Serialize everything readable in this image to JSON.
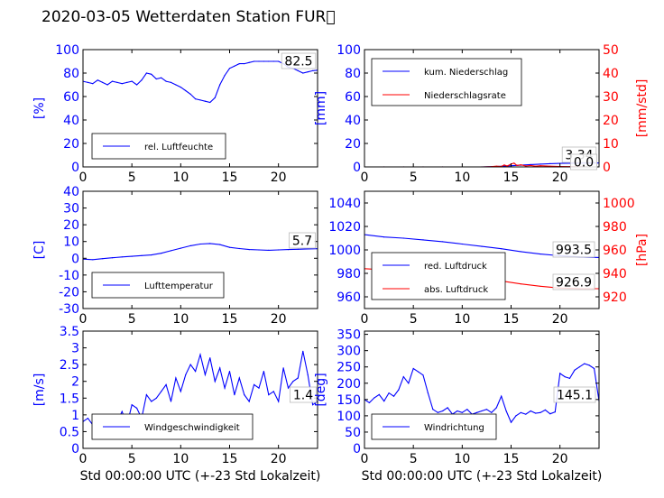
{
  "figure": {
    "title": "2020-03-05 Wetterdaten Station FUR\u0000"
  },
  "chart_data": [
    {
      "type": "line",
      "id": "humidity",
      "ylabel": "[%]",
      "xlabel": "",
      "xlim": [
        0,
        24
      ],
      "ylim": [
        0,
        100
      ],
      "xticks": [
        0,
        5,
        10,
        15,
        20
      ],
      "yticks": [
        0,
        20,
        40,
        60,
        80,
        100
      ],
      "grid": false,
      "legend": "bottom-left",
      "last_value_label": "82.5",
      "series": [
        {
          "name": "rel. Luftfeuchte",
          "color": "#0000ff",
          "axis": "left",
          "x": [
            0,
            0.5,
            1,
            1.5,
            2,
            2.5,
            3,
            3.5,
            4,
            4.5,
            5,
            5.5,
            6,
            6.5,
            7,
            7.5,
            8,
            8.5,
            9,
            9.5,
            10,
            10.5,
            11,
            11.5,
            12,
            12.5,
            13,
            13.5,
            14,
            14.5,
            15,
            15.5,
            16,
            16.5,
            17,
            17.5,
            18,
            18.5,
            19,
            19.5,
            20,
            20.5,
            21,
            21.5,
            22,
            22.5,
            23,
            23.5,
            24
          ],
          "y": [
            73,
            72,
            71,
            74,
            72,
            70,
            73,
            72,
            71,
            72,
            73,
            70,
            74,
            80,
            79,
            75,
            76,
            73,
            72,
            70,
            68,
            65,
            62,
            58,
            57,
            56,
            55,
            59,
            70,
            78,
            84,
            86,
            88,
            88,
            89,
            90,
            90,
            90,
            90,
            90,
            90,
            88,
            85,
            84,
            82,
            80,
            81,
            82,
            82.5
          ]
        }
      ]
    },
    {
      "type": "line",
      "id": "precipitation",
      "ylabel": "[mm]",
      "ylabel_right": "[mm/std]",
      "xlabel": "",
      "xlim": [
        0,
        24
      ],
      "ylim": [
        0,
        100
      ],
      "ylim_right": [
        0,
        50
      ],
      "xticks": [
        0,
        5,
        10,
        15,
        20
      ],
      "yticks": [
        0,
        20,
        40,
        60,
        80,
        100
      ],
      "yticks_right": [
        0,
        10,
        20,
        30,
        40,
        50
      ],
      "grid": false,
      "legend": "top-left",
      "last_value_labels": [
        "3.34",
        "0.0"
      ],
      "series": [
        {
          "name": "kum. Niederschlag",
          "color": "#0000ff",
          "axis": "left",
          "x": [
            0,
            2,
            4,
            6,
            8,
            10,
            12,
            13,
            14,
            15,
            16,
            17,
            18,
            19,
            20,
            21,
            22,
            23,
            24
          ],
          "y": [
            0,
            0,
            0,
            0,
            0,
            0,
            0,
            0.2,
            0.5,
            1.0,
            1.5,
            2.0,
            2.4,
            2.8,
            3.0,
            3.1,
            3.2,
            3.3,
            3.34
          ]
        },
        {
          "name": "Niederschlagsrate",
          "color": "#ff0000",
          "axis": "right",
          "x": [
            0,
            2,
            4,
            6,
            8,
            10,
            12,
            13,
            13.5,
            14,
            14.3,
            14.6,
            15,
            15.3,
            15.6,
            16,
            16.5,
            17,
            17.5,
            18,
            19,
            20,
            21,
            22,
            23,
            24
          ],
          "y": [
            0,
            0,
            0,
            0,
            0,
            0,
            0,
            0.1,
            0.3,
            0.2,
            0.8,
            0.4,
            1.2,
            1.6,
            0.6,
            0.9,
            0.4,
            0.6,
            0.3,
            0.5,
            0.3,
            0.2,
            0.1,
            0.1,
            0,
            0
          ]
        }
      ]
    },
    {
      "type": "line",
      "id": "temperature",
      "ylabel": "[C]",
      "xlabel": "",
      "xlim": [
        0,
        24
      ],
      "ylim": [
        -30,
        40
      ],
      "xticks": [
        0,
        5,
        10,
        15,
        20
      ],
      "yticks": [
        -30,
        -20,
        -10,
        0,
        10,
        20,
        30,
        40
      ],
      "grid": false,
      "legend": "bottom-left",
      "last_value_label": "5.7",
      "series": [
        {
          "name": "Lufttemperatur",
          "color": "#0000ff",
          "axis": "left",
          "x": [
            0,
            1,
            2,
            3,
            4,
            5,
            6,
            7,
            8,
            9,
            10,
            11,
            12,
            13,
            14,
            15,
            16,
            17,
            18,
            19,
            20,
            21,
            22,
            23,
            24
          ],
          "y": [
            -0.5,
            -0.8,
            -0.2,
            0.3,
            0.8,
            1.2,
            1.6,
            2.0,
            3.0,
            4.5,
            6.0,
            7.5,
            8.5,
            8.8,
            8.2,
            6.5,
            5.8,
            5.2,
            5.0,
            4.8,
            5.0,
            5.2,
            5.4,
            5.6,
            5.7
          ]
        }
      ]
    },
    {
      "type": "line",
      "id": "pressure",
      "ylabel": "",
      "ylabel_right": "[hPa]",
      "xlabel": "",
      "xlim": [
        0,
        24
      ],
      "ylim": [
        950,
        1050
      ],
      "ylim_right": [
        910,
        1010
      ],
      "xticks": [
        0,
        5,
        10,
        15,
        20
      ],
      "yticks": [
        960,
        980,
        1000,
        1020,
        1040
      ],
      "yticks_right": [
        920,
        940,
        960,
        980,
        1000
      ],
      "grid": false,
      "legend": "bottom-left",
      "last_value_labels": [
        "993.5",
        "926.9"
      ],
      "series": [
        {
          "name": "red. Luftdruck",
          "color": "#0000ff",
          "axis": "left",
          "x": [
            0,
            2,
            4,
            6,
            8,
            10,
            12,
            14,
            16,
            18,
            20,
            22,
            24
          ],
          "y": [
            1013,
            1011,
            1010,
            1008.5,
            1007,
            1005,
            1003,
            1001,
            998.5,
            996.5,
            995,
            994,
            993.5
          ]
        },
        {
          "name": "abs. Luftdruck",
          "color": "#ff0000",
          "axis": "right",
          "x": [
            0,
            2,
            4,
            6,
            8,
            10,
            12,
            14,
            16,
            18,
            20,
            22,
            24
          ],
          "y": [
            944,
            943,
            941.5,
            940.5,
            939,
            937.5,
            936,
            933.5,
            931,
            929,
            927.5,
            927,
            926.9
          ]
        }
      ]
    },
    {
      "type": "line",
      "id": "wind-speed",
      "ylabel": "[m/s]",
      "xlabel": "Std 00:00:00 UTC (+-23 Std Lokalzeit)",
      "xlim": [
        0,
        24
      ],
      "ylim": [
        0,
        3.5
      ],
      "xticks": [
        0,
        5,
        10,
        15,
        20
      ],
      "yticks": [
        0,
        0.5,
        1.0,
        1.5,
        2.0,
        2.5,
        3.0,
        3.5
      ],
      "grid": false,
      "legend": "bottom-left",
      "last_value_label": "1.4",
      "series": [
        {
          "name": "Windgeschwindigkeit",
          "color": "#0000ff",
          "axis": "left",
          "x": [
            0,
            0.5,
            1,
            1.5,
            2,
            2.5,
            3,
            3.5,
            4,
            4.5,
            5,
            5.5,
            6,
            6.5,
            7,
            7.5,
            8,
            8.5,
            9,
            9.5,
            10,
            10.5,
            11,
            11.5,
            12,
            12.5,
            13,
            13.5,
            14,
            14.5,
            15,
            15.5,
            16,
            16.5,
            17,
            17.5,
            18,
            18.5,
            19,
            19.5,
            20,
            20.5,
            21,
            21.5,
            22,
            22.5,
            23,
            23.5,
            24
          ],
          "y": [
            0.8,
            0.9,
            0.7,
            1.0,
            0.8,
            0.9,
            0.6,
            0.8,
            1.1,
            0.7,
            1.3,
            1.2,
            0.9,
            1.6,
            1.4,
            1.5,
            1.7,
            1.9,
            1.4,
            2.1,
            1.7,
            2.2,
            2.5,
            2.3,
            2.8,
            2.2,
            2.7,
            2.0,
            2.4,
            1.8,
            2.3,
            1.6,
            2.1,
            1.6,
            1.4,
            1.9,
            1.8,
            2.3,
            1.6,
            1.7,
            1.4,
            2.4,
            1.8,
            2.0,
            2.1,
            2.9,
            2.2,
            1.3,
            1.4
          ]
        }
      ]
    },
    {
      "type": "line",
      "id": "wind-direction",
      "ylabel": "[deg]",
      "xlabel": "Std 00:00:00 UTC (+-23 Std Lokalzeit)",
      "xlim": [
        0,
        24
      ],
      "ylim": [
        0,
        360
      ],
      "xticks": [
        0,
        5,
        10,
        15,
        20
      ],
      "yticks": [
        0,
        50,
        100,
        150,
        200,
        250,
        300,
        350
      ],
      "grid": false,
      "legend": "bottom-left",
      "last_value_label": "145.1",
      "series": [
        {
          "name": "Windrichtung",
          "color": "#0000ff",
          "axis": "left",
          "x": [
            0,
            0.5,
            1,
            1.5,
            2,
            2.5,
            3,
            3.5,
            4,
            4.5,
            5,
            5.5,
            6,
            6.5,
            7,
            7.5,
            8,
            8.5,
            9,
            9.5,
            10,
            10.5,
            11,
            11.5,
            12,
            12.5,
            13,
            13.5,
            14,
            14.5,
            15,
            15.5,
            16,
            16.5,
            17,
            17.5,
            18,
            18.5,
            19,
            19.5,
            20,
            20.5,
            21,
            21.5,
            22,
            22.5,
            23,
            23.5,
            24
          ],
          "y": [
            150,
            140,
            155,
            165,
            145,
            170,
            160,
            180,
            220,
            200,
            245,
            235,
            225,
            170,
            120,
            110,
            115,
            125,
            105,
            115,
            110,
            120,
            105,
            110,
            115,
            120,
            110,
            125,
            160,
            115,
            80,
            100,
            110,
            105,
            115,
            108,
            110,
            118,
            106,
            112,
            230,
            220,
            215,
            240,
            250,
            260,
            255,
            245,
            145
          ]
        }
      ]
    }
  ]
}
